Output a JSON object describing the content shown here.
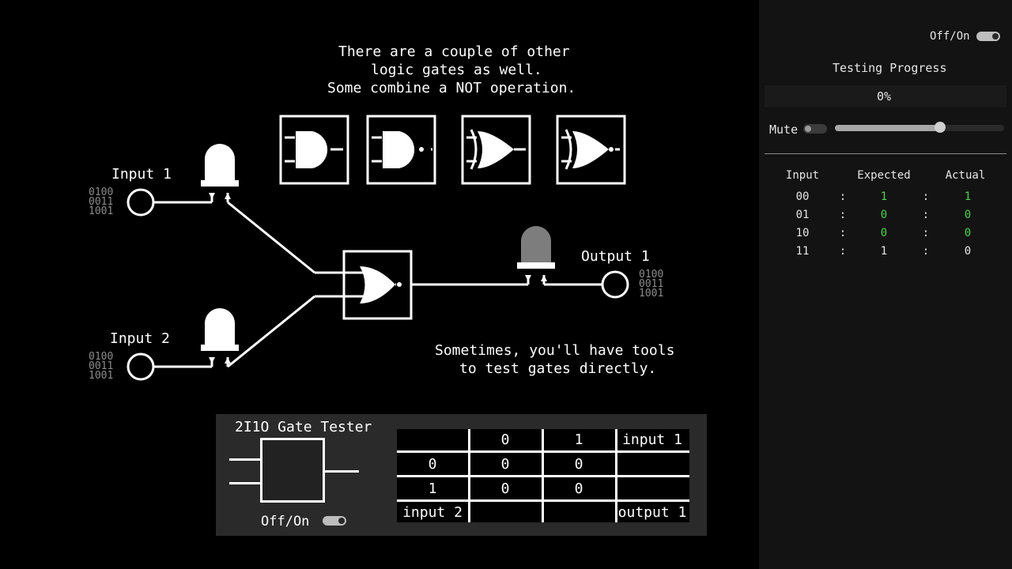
{
  "board": {
    "intro_lines": [
      "There are a couple of other",
      "logic gates as well.",
      "Some combine a NOT operation."
    ],
    "tester_hint_lines": [
      "Sometimes, you'll have tools",
      "to test gates directly."
    ],
    "inputs": [
      {
        "label": "Input 1",
        "bits": [
          "0100",
          "0011",
          "1001"
        ]
      },
      {
        "label": "Input 2",
        "bits": [
          "0100",
          "0011",
          "1001"
        ]
      }
    ],
    "output": {
      "label": "Output 1",
      "bits": [
        "0100",
        "0011",
        "1001"
      ]
    },
    "gallery_gates": [
      "and-gate-icon",
      "nand-gate-icon",
      "xor-gate-icon",
      "xnor-gate-icon"
    ],
    "placed_gate": "nor-gate-icon"
  },
  "tester": {
    "title": "2I1O Gate Tester",
    "toggle_label": "Off/On",
    "table": {
      "header": [
        "",
        "0",
        "1",
        "input 1"
      ],
      "rows": [
        [
          "0",
          "0",
          "0",
          ""
        ],
        [
          "1",
          "0",
          "0",
          ""
        ]
      ],
      "footer": [
        "input 2",
        "",
        "",
        "output 1"
      ]
    }
  },
  "panel": {
    "power_label": "Off/On",
    "progress_title": "Testing Progress",
    "progress_value": "0%",
    "mute_label": "Mute",
    "volume_level": 0.62,
    "columns": [
      "Input",
      "Expected",
      "Actual"
    ],
    "separator": ":",
    "rows": [
      {
        "input": "00",
        "expected": "1",
        "actual": "1",
        "expected_green": true,
        "actual_green": true
      },
      {
        "input": "01",
        "expected": "0",
        "actual": "0",
        "expected_green": true,
        "actual_green": true
      },
      {
        "input": "10",
        "expected": "0",
        "actual": "0",
        "expected_green": true,
        "actual_green": true
      },
      {
        "input": "11",
        "expected": "1",
        "actual": "0",
        "expected_green": false,
        "actual_green": false
      }
    ],
    "colors": {
      "match": "#4fd14f",
      "background": "#131313"
    }
  }
}
